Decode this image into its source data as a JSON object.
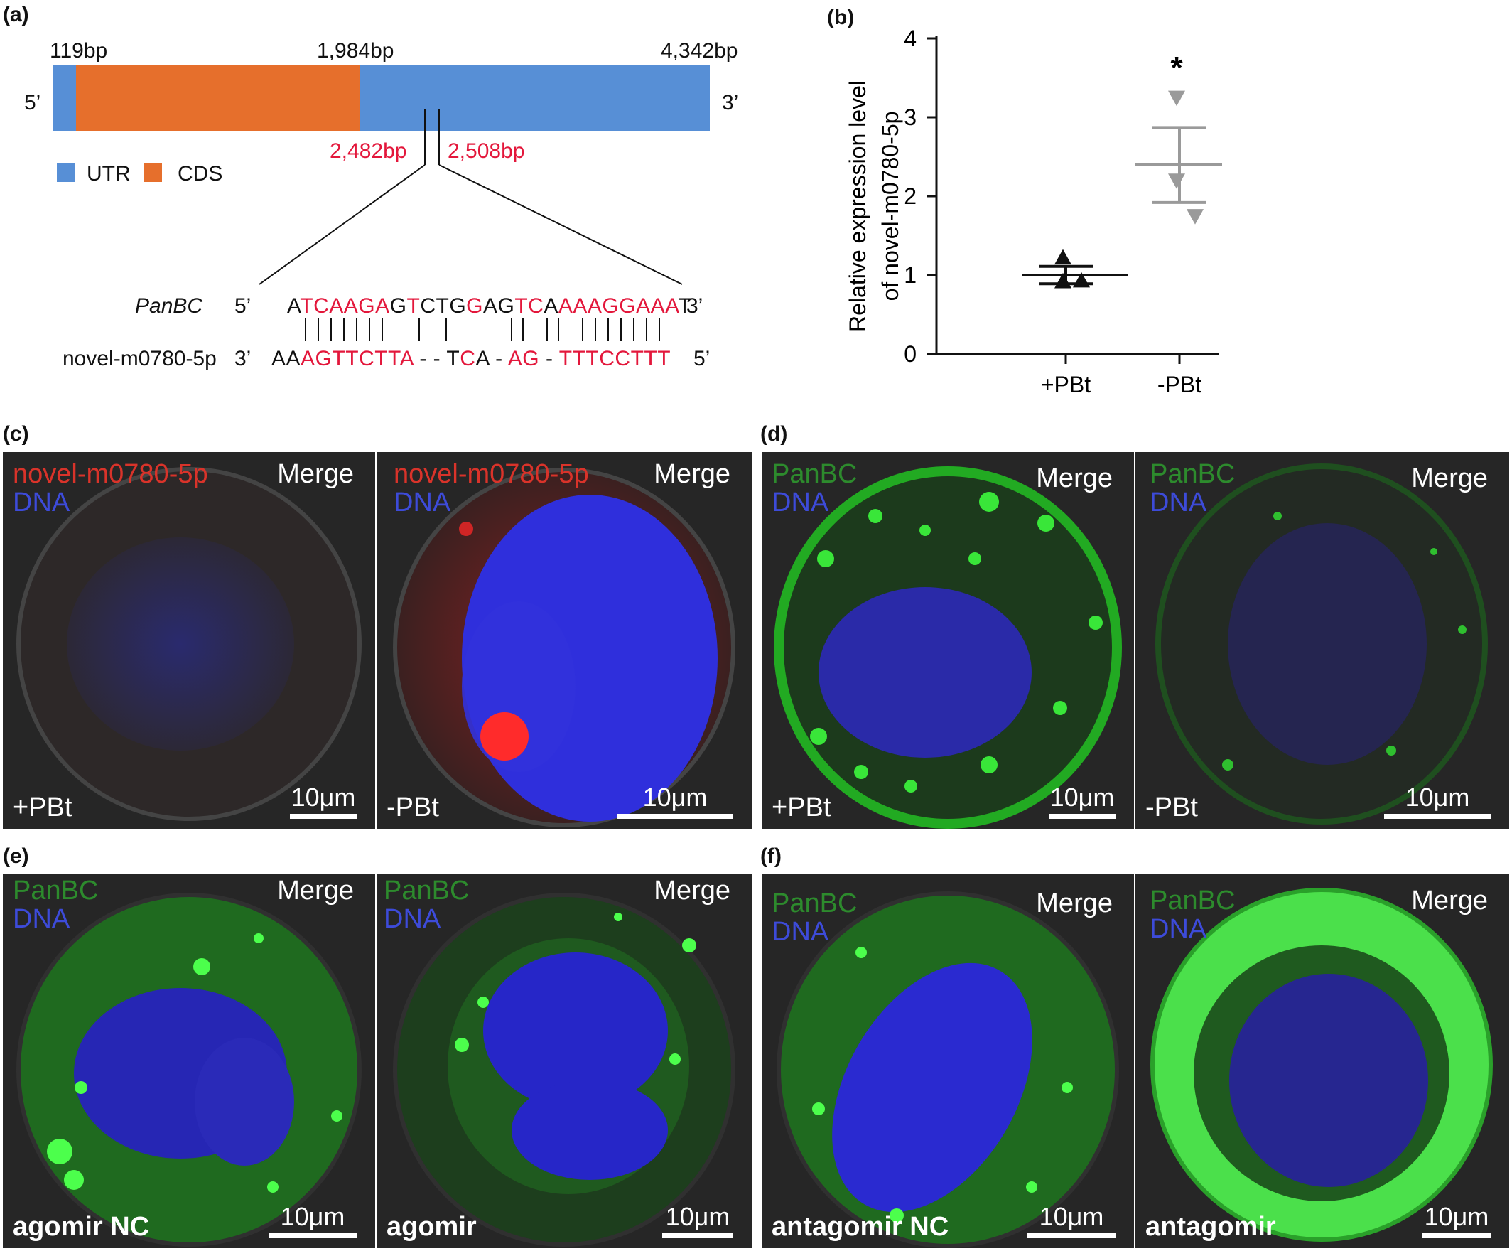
{
  "panel_labels": {
    "a": "(a)",
    "b": "(b)",
    "c": "(c)",
    "d": "(d)",
    "e": "(e)",
    "f": "(f)"
  },
  "panel_a": {
    "pos_119": "119bp",
    "pos_1984": "1,984bp",
    "pos_4342": "4,342bp",
    "five_prime": "5’",
    "three_prime": "3’",
    "pos_2482": "2,482bp",
    "pos_2508": "2,508bp",
    "legend_utr": "UTR",
    "legend_cds": "CDS",
    "colors": {
      "utr": "#578fd6",
      "cds": "#e66f2c",
      "highlight": "#e3173b"
    },
    "gene_name": "PanBC",
    "gene_five": "5’",
    "gene_three": "3’",
    "gene_seq": [
      {
        "t": "A",
        "c": "k"
      },
      {
        "t": "TCAAGA",
        "c": "r"
      },
      {
        "t": "G",
        "c": "k"
      },
      {
        "t": "T",
        "c": "r"
      },
      {
        "t": "CTG",
        "c": "k"
      },
      {
        "t": "G",
        "c": "r"
      },
      {
        "t": "AG",
        "c": "k"
      },
      {
        "t": "TC",
        "c": "r"
      },
      {
        "t": "A",
        "c": "k"
      },
      {
        "t": "AAAGGAAA",
        "c": "r"
      },
      {
        "t": "T",
        "c": "k"
      }
    ],
    "mirna_name": "novel-m0780-5p",
    "mirna_three": "3’",
    "mirna_five": "5’",
    "mirna_seq": [
      {
        "t": "AA",
        "c": "k"
      },
      {
        "t": "AGTTCTTA",
        "c": "r"
      },
      {
        "t": " - - T",
        "c": "k"
      },
      {
        "t": "C",
        "c": "r"
      },
      {
        "t": "A - ",
        "c": "k"
      },
      {
        "t": "AG",
        "c": "r"
      },
      {
        "t": " - ",
        "c": "k"
      },
      {
        "t": "TTTCCTTT",
        "c": "r"
      }
    ]
  },
  "chart_data": {
    "type": "scatter",
    "ylabel_line1": "Relative expression level",
    "ylabel_line2": "of novel-m0780-5p",
    "xlabel": "",
    "categories": [
      "+PBt",
      "-PBt"
    ],
    "ylim": [
      0,
      4
    ],
    "yticks": [
      "0",
      "1",
      "2",
      "3",
      "4"
    ],
    "series": [
      {
        "category": "+PBt",
        "marker": "triangle-up",
        "color": "#111111",
        "points": [
          1.22,
          0.92,
          0.93
        ],
        "mean": 1.0,
        "sem_upper": 1.11,
        "sem_lower": 0.89
      },
      {
        "category": "-PBt",
        "marker": "triangle-down",
        "color": "#9a9a9a",
        "points": [
          3.25,
          2.2,
          1.75
        ],
        "mean": 2.4,
        "sem_upper": 2.87,
        "sem_lower": 1.92
      }
    ],
    "significance": "*"
  },
  "panels": {
    "c": {
      "left": {
        "ch1": "novel-m0780-5p",
        "ch2": "DNA",
        "merge": "Merge",
        "cond": "+PBt",
        "scale": "10μm"
      },
      "right": {
        "ch1": "novel-m0780-5p",
        "ch2": "DNA",
        "merge": "Merge",
        "cond": "-PBt",
        "scale": "10μm"
      }
    },
    "d": {
      "left": {
        "ch1": "PanBC",
        "ch2": "DNA",
        "merge": "Merge",
        "cond": "+PBt",
        "scale": "10μm"
      },
      "right": {
        "ch1": "PanBC",
        "ch2": "DNA",
        "merge": "Merge",
        "cond": "-PBt",
        "scale": "10μm"
      }
    },
    "e": {
      "left": {
        "ch1": "PanBC",
        "ch2": "DNA",
        "merge": "Merge",
        "cond": "agomir NC",
        "scale": "10μm"
      },
      "right": {
        "ch1": "PanBC",
        "ch2": "DNA",
        "merge": "Merge",
        "cond": "agomir",
        "scale": "10μm"
      }
    },
    "f": {
      "left": {
        "ch1": "PanBC",
        "ch2": "DNA",
        "merge": "Merge",
        "cond": "antagomir NC",
        "scale": "10μm"
      },
      "right": {
        "ch1": "PanBC",
        "ch2": "DNA",
        "merge": "Merge",
        "cond": "antagomir",
        "scale": "10μm"
      }
    }
  }
}
